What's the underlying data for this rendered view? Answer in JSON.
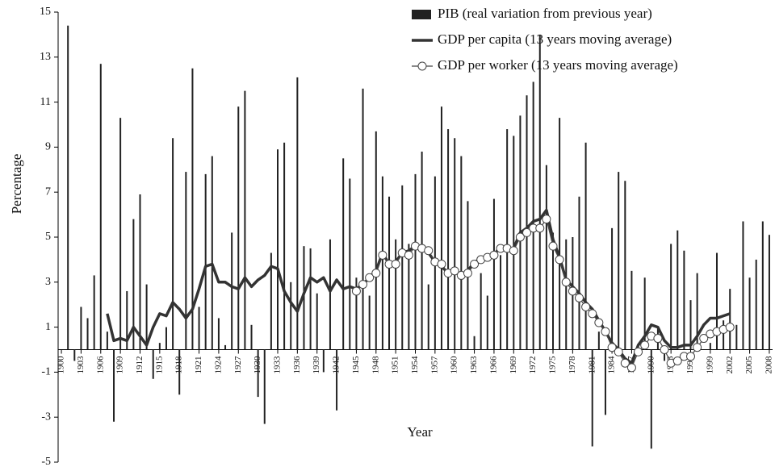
{
  "chart_data": {
    "type": "bar_line",
    "x_label": "Year",
    "y_label": "Percentage",
    "x": [
      1900,
      1901,
      1902,
      1903,
      1904,
      1905,
      1906,
      1907,
      1908,
      1909,
      1910,
      1911,
      1912,
      1913,
      1914,
      1915,
      1916,
      1917,
      1918,
      1919,
      1920,
      1921,
      1922,
      1923,
      1924,
      1925,
      1926,
      1927,
      1928,
      1929,
      1930,
      1931,
      1932,
      1933,
      1934,
      1935,
      1936,
      1937,
      1938,
      1939,
      1940,
      1941,
      1942,
      1943,
      1944,
      1945,
      1946,
      1947,
      1948,
      1949,
      1950,
      1951,
      1952,
      1953,
      1954,
      1955,
      1956,
      1957,
      1958,
      1959,
      1960,
      1961,
      1962,
      1963,
      1964,
      1965,
      1966,
      1967,
      1968,
      1969,
      1970,
      1971,
      1972,
      1973,
      1974,
      1975,
      1976,
      1977,
      1978,
      1979,
      1980,
      1981,
      1982,
      1983,
      1984,
      1985,
      1986,
      1987,
      1988,
      1989,
      1990,
      1991,
      1992,
      1993,
      1994,
      1995,
      1996,
      1997,
      1998,
      1999,
      2000,
      2001,
      2002,
      2003,
      2004,
      2005,
      2006,
      2007,
      2008
    ],
    "series": [
      {
        "name": "PIB (real variation from previous year)",
        "kind": "bar",
        "color": "#222222",
        "values": [
          null,
          14.4,
          -0.5,
          1.9,
          1.4,
          3.3,
          12.7,
          0.8,
          -3.2,
          10.3,
          2.6,
          5.8,
          6.9,
          2.9,
          -1.3,
          0.3,
          1.0,
          9.4,
          -2.0,
          7.9,
          12.5,
          1.9,
          7.8,
          8.6,
          1.4,
          0.2,
          5.2,
          10.8,
          11.5,
          1.1,
          -2.1,
          -3.3,
          4.3,
          8.9,
          9.2,
          3.0,
          12.1,
          4.6,
          4.5,
          2.5,
          -1.0,
          4.9,
          -2.7,
          8.5,
          7.6,
          3.2,
          11.6,
          2.4,
          9.7,
          7.7,
          6.8,
          4.9,
          7.3,
          4.7,
          7.8,
          8.8,
          2.9,
          7.7,
          10.8,
          9.8,
          9.4,
          8.6,
          6.6,
          0.6,
          3.4,
          2.4,
          6.7,
          4.2,
          9.8,
          9.5,
          10.4,
          11.3,
          11.9,
          14.0,
          8.2,
          5.2,
          10.3,
          4.9,
          5.0,
          6.8,
          9.2,
          -4.3,
          0.8,
          -2.9,
          5.4,
          7.9,
          7.5,
          3.5,
          -0.1,
          3.2,
          -4.4,
          1.0,
          -0.5,
          4.7,
          5.3,
          4.4,
          2.2,
          3.4,
          0.0,
          0.3,
          4.3,
          1.3,
          2.7,
          1.1,
          5.7,
          3.2,
          4.0,
          5.7,
          5.1
        ]
      },
      {
        "name": "GDP per capita (13 years moving average)",
        "kind": "line",
        "color": "#333333",
        "values": [
          null,
          null,
          null,
          null,
          null,
          null,
          null,
          1.6,
          0.4,
          0.5,
          0.4,
          1.0,
          0.6,
          0.2,
          1.0,
          1.6,
          1.5,
          2.1,
          1.8,
          1.4,
          1.8,
          2.7,
          3.7,
          3.8,
          3.0,
          3.0,
          2.8,
          2.7,
          3.2,
          2.8,
          3.1,
          3.3,
          3.7,
          3.6,
          2.6,
          2.1,
          1.7,
          2.5,
          3.2,
          3.0,
          3.2,
          2.6,
          3.1,
          2.7,
          2.8,
          2.7,
          2.9,
          3.2,
          3.5,
          4.3,
          3.8,
          3.9,
          4.3,
          4.4,
          4.6,
          4.5,
          4.3,
          3.9,
          3.7,
          3.4,
          3.5,
          3.3,
          3.5,
          3.9,
          4.0,
          4.1,
          4.2,
          4.6,
          4.5,
          4.5,
          5.2,
          5.4,
          5.7,
          5.8,
          6.2,
          4.9,
          4.1,
          3.1,
          2.8,
          2.5,
          2.1,
          1.8,
          1.3,
          0.8,
          0.3,
          0.0,
          -0.4,
          -0.6,
          0.2,
          0.6,
          1.1,
          1.0,
          0.4,
          0.1,
          0.1,
          0.2,
          0.2,
          0.6,
          1.1,
          1.4,
          1.4,
          1.5,
          1.6,
          null,
          null,
          null,
          null,
          null,
          null
        ]
      },
      {
        "name": "GDP per worker (13 years moving average)",
        "kind": "line_marker",
        "color": "#444444",
        "values": [
          null,
          null,
          null,
          null,
          null,
          null,
          null,
          null,
          null,
          null,
          null,
          null,
          null,
          null,
          null,
          null,
          null,
          null,
          null,
          null,
          null,
          null,
          null,
          null,
          null,
          null,
          null,
          null,
          null,
          null,
          null,
          null,
          null,
          null,
          null,
          null,
          null,
          null,
          null,
          null,
          null,
          null,
          null,
          null,
          null,
          2.6,
          2.9,
          3.2,
          3.4,
          4.2,
          3.8,
          3.8,
          4.3,
          4.2,
          4.6,
          4.5,
          4.4,
          3.9,
          3.8,
          3.4,
          3.5,
          3.3,
          3.4,
          3.8,
          4.0,
          4.1,
          4.2,
          4.5,
          4.5,
          4.4,
          5.0,
          5.2,
          5.4,
          5.4,
          5.8,
          4.6,
          4.0,
          3.0,
          2.6,
          2.3,
          1.9,
          1.6,
          1.2,
          0.8,
          0.1,
          -0.1,
          -0.6,
          -0.8,
          -0.1,
          0.2,
          0.6,
          0.5,
          0.0,
          -0.6,
          -0.5,
          -0.3,
          -0.3,
          0.1,
          0.5,
          0.7,
          0.8,
          0.9,
          1.0,
          null,
          null,
          null,
          null,
          null,
          null
        ]
      }
    ],
    "xlim": [
      1899.5,
      2008.5
    ],
    "xticks": [
      1900,
      1903,
      1906,
      1909,
      1912,
      1915,
      1918,
      1921,
      1924,
      1927,
      1930,
      1933,
      1936,
      1939,
      1942,
      1945,
      1948,
      1951,
      1954,
      1957,
      1960,
      1963,
      1966,
      1969,
      1972,
      1975,
      1978,
      1981,
      1984,
      1987,
      1990,
      1993,
      1996,
      1999,
      2002,
      2005,
      2008
    ],
    "ylim": [
      -5,
      15
    ],
    "yticks": [
      -5,
      -3,
      -1,
      1,
      3,
      5,
      7,
      9,
      11,
      13,
      15
    ],
    "grid": false,
    "legend": "upper right"
  }
}
